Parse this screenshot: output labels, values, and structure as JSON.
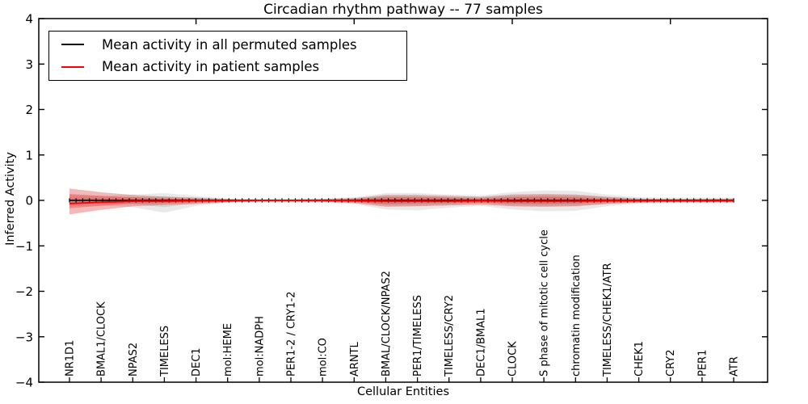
{
  "figure": {
    "title": "Circadian rhythm pathway -- 77 samples",
    "xlabel": "Cellular Entities",
    "ylabel": "Inferred Activity"
  },
  "legend": {
    "position": "upper left",
    "entries": [
      {
        "label": "Mean activity in all permuted samples",
        "color": "#000000"
      },
      {
        "label": "Mean activity in patient samples",
        "color": "#ff0000"
      }
    ]
  },
  "chart_data": {
    "type": "line",
    "title": "Circadian rhythm pathway -- 77 samples",
    "xlabel": "Cellular Entities",
    "ylabel": "Inferred Activity",
    "ylim": [
      -4,
      4
    ],
    "yticks": [
      4,
      3,
      2,
      1,
      0,
      -1,
      -2,
      -3,
      -4
    ],
    "grid": false,
    "legend_position": "upper left",
    "top_tick_category_indexes": [
      4,
      9,
      14,
      19
    ],
    "categories": [
      "NR1D1",
      "BMAL1/CLOCK",
      "NPAS2",
      "TIMELESS",
      "DEC1",
      "mol:HEME",
      "mol:NADPH",
      "PER1-2 / CRY1-2",
      "mol:CO",
      "ARNTL",
      "BMAL/CLOCK/NPAS2",
      "PER1/TIMELESS",
      "TIMELESS/CRY2",
      "DEC1/BMAL1",
      "CLOCK",
      "S phase of mitotic cell cycle",
      "chromatin modification",
      "TIMELESS/CHEK1/ATR",
      "CHEK1",
      "CRY2",
      "PER1",
      "ATR"
    ],
    "series": [
      {
        "name": "Mean activity in all permuted samples",
        "line_color": "#000000",
        "band_color": "#000000",
        "band_opacity": 0.085,
        "mean": [
          0,
          0,
          0,
          0,
          0,
          0,
          0,
          0,
          0,
          0,
          0,
          0,
          0,
          0,
          0,
          0,
          0,
          0,
          0,
          0,
          0,
          0
        ],
        "band_outer_upper": [
          0.1,
          0.1,
          0.13,
          0.16,
          0.1,
          0.04,
          0.03,
          0.03,
          0.04,
          0.07,
          0.16,
          0.16,
          0.13,
          0.11,
          0.18,
          0.22,
          0.21,
          0.13,
          0.07,
          0.06,
          0.06,
          0.06
        ],
        "band_outer_lower": [
          -0.12,
          -0.11,
          -0.15,
          -0.27,
          -0.12,
          -0.05,
          -0.03,
          -0.03,
          -0.04,
          -0.08,
          -0.2,
          -0.22,
          -0.16,
          -0.12,
          -0.2,
          -0.24,
          -0.23,
          -0.13,
          -0.07,
          -0.06,
          -0.06,
          -0.06
        ],
        "band_inner_upper": [
          0.05,
          0.05,
          0.07,
          0.09,
          0.05,
          0.02,
          0.02,
          0.02,
          0.02,
          0.04,
          0.09,
          0.09,
          0.07,
          0.06,
          0.1,
          0.12,
          0.11,
          0.07,
          0.04,
          0.03,
          0.03,
          0.03
        ],
        "band_inner_lower": [
          -0.06,
          -0.06,
          -0.08,
          -0.15,
          -0.06,
          -0.03,
          -0.02,
          -0.02,
          -0.02,
          -0.04,
          -0.11,
          -0.12,
          -0.09,
          -0.06,
          -0.11,
          -0.13,
          -0.12,
          -0.07,
          -0.04,
          -0.03,
          -0.03,
          -0.03
        ]
      },
      {
        "name": "Mean activity in patient samples",
        "line_color": "#ff0000",
        "band_color": "#dc2828",
        "band_opacity": 0.33,
        "mean": [
          -0.07,
          -0.04,
          -0.02,
          -0.02,
          -0.01,
          -0.01,
          0,
          0,
          0,
          -0.01,
          -0.02,
          -0.02,
          -0.02,
          -0.01,
          -0.02,
          -0.02,
          -0.02,
          -0.01,
          -0.01,
          -0.01,
          -0.01,
          -0.01
        ],
        "band_outer_upper": [
          0.26,
          0.18,
          0.12,
          0.08,
          0.06,
          0.03,
          0.02,
          0.02,
          0.03,
          0.05,
          0.12,
          0.12,
          0.1,
          0.08,
          0.13,
          0.14,
          0.13,
          0.08,
          0.04,
          0.03,
          0.03,
          0.04
        ],
        "band_outer_lower": [
          -0.31,
          -0.21,
          -0.13,
          -0.1,
          -0.08,
          -0.04,
          -0.02,
          -0.02,
          -0.03,
          -0.06,
          -0.14,
          -0.13,
          -0.11,
          -0.09,
          -0.13,
          -0.14,
          -0.13,
          -0.08,
          -0.05,
          -0.04,
          -0.04,
          -0.04
        ],
        "band_inner_upper": [
          0.14,
          0.1,
          0.07,
          0.04,
          0.03,
          0.02,
          0.01,
          0.01,
          0.02,
          0.03,
          0.07,
          0.07,
          0.06,
          0.04,
          0.07,
          0.08,
          0.07,
          0.04,
          0.02,
          0.02,
          0.02,
          0.02
        ],
        "band_inner_lower": [
          -0.17,
          -0.12,
          -0.07,
          -0.06,
          -0.04,
          -0.02,
          -0.01,
          -0.01,
          -0.02,
          -0.03,
          -0.08,
          -0.07,
          -0.06,
          -0.05,
          -0.07,
          -0.08,
          -0.07,
          -0.04,
          -0.03,
          -0.02,
          -0.02,
          -0.02
        ]
      }
    ]
  }
}
